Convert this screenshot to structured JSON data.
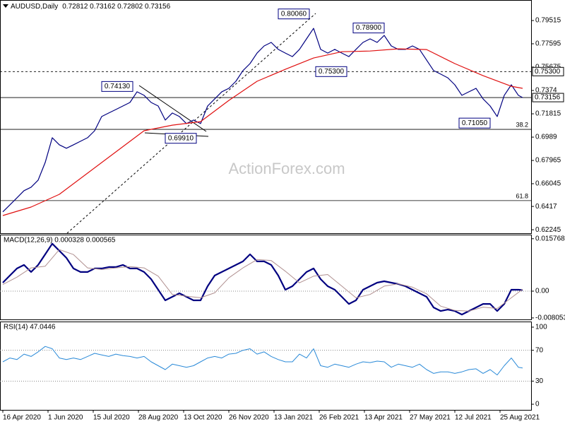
{
  "chart_data": [
    {
      "type": "line",
      "title": "AUDUSD,Daily",
      "quote": "0.72812 0.73162 0.72802 0.73156",
      "watermark": "ActionForex.com",
      "xlim": [
        -2,
        374
      ],
      "ylim": [
        0.6196,
        0.8121
      ],
      "yticks": [
        0.79515,
        0.77595,
        0.75675,
        0.7374,
        0.71815,
        0.6989,
        0.67965,
        0.66045,
        0.6417,
        0.62245
      ],
      "series": [
        {
          "color": "#000080",
          "x": [
            0,
            5,
            10,
            15,
            20,
            25,
            30,
            35,
            40,
            45,
            50,
            55,
            60,
            65,
            70,
            75,
            80,
            85,
            90,
            95,
            100,
            105,
            110,
            115,
            120,
            125,
            130,
            135,
            140,
            145,
            150,
            155,
            160,
            165,
            170,
            175,
            180,
            185,
            190,
            195,
            200,
            205,
            210,
            215,
            220,
            225,
            230,
            235,
            240,
            245,
            250,
            255,
            260,
            265,
            270,
            275,
            280,
            285,
            290,
            295,
            300,
            305,
            310,
            315,
            320,
            325,
            330,
            335,
            340,
            345,
            350,
            355,
            360,
            365,
            368
          ],
          "values": [
            0.6372,
            0.643,
            0.6488,
            0.6547,
            0.6576,
            0.6634,
            0.678,
            0.6984,
            0.6926,
            0.6897,
            0.6926,
            0.6955,
            0.6984,
            0.7042,
            0.7159,
            0.7188,
            0.7217,
            0.7246,
            0.7275,
            0.7363,
            0.7334,
            0.7275,
            0.7246,
            0.713,
            0.7188,
            0.7159,
            0.7101,
            0.713,
            0.7101,
            0.7246,
            0.7305,
            0.7363,
            0.7392,
            0.745,
            0.7538,
            0.7596,
            0.7683,
            0.7742,
            0.7771,
            0.7713,
            0.7683,
            0.7654,
            0.7713,
            0.78,
            0.7887,
            0.7713,
            0.7683,
            0.7713,
            0.7683,
            0.7654,
            0.7713,
            0.7771,
            0.78,
            0.7771,
            0.7829,
            0.7742,
            0.7713,
            0.7713,
            0.7742,
            0.7713,
            0.7626,
            0.7538,
            0.7509,
            0.7479,
            0.7421,
            0.7334,
            0.7363,
            0.7392,
            0.7305,
            0.7246,
            0.7159,
            0.7334,
            0.7421,
            0.7334,
            0.73156
          ],
          "width": 1.2
        },
        {
          "color": "#e01010",
          "x": [
            0,
            20,
            40,
            60,
            80,
            100,
            120,
            140,
            160,
            180,
            200,
            220,
            240,
            260,
            280,
            300,
            320,
            340,
            360,
            368
          ],
          "values": [
            0.6342,
            0.6412,
            0.6517,
            0.6692,
            0.6867,
            0.7042,
            0.7088,
            0.7117,
            0.7292,
            0.745,
            0.7549,
            0.7642,
            0.7694,
            0.77,
            0.7718,
            0.7712,
            0.7596,
            0.7496,
            0.7409,
            0.7392
          ],
          "width": 1.2
        }
      ],
      "levels": [
        {
          "value": 0.753,
          "label": "0.75300",
          "style": "dashed",
          "boxed": true
        },
        {
          "value": 0.73156,
          "label": "0.73156",
          "style": "solid",
          "boxed": true
        },
        {
          "value": 0.7053,
          "label": "38.2",
          "style": "solid",
          "boxed": false
        },
        {
          "value": 0.6465,
          "label": "61.8",
          "style": "solid",
          "boxed": false
        }
      ],
      "annotations": [
        {
          "label": "0.80060",
          "x": 221,
          "y": 0.8006
        },
        {
          "label": "0.78900",
          "x": 272,
          "y": 0.789
        },
        {
          "label": "0.75300",
          "x": 243,
          "y": 0.753
        },
        {
          "label": "0.74130",
          "x": 96,
          "y": 0.7413
        },
        {
          "label": "0.71050",
          "x": 348,
          "y": 0.7105
        },
        {
          "label": "0.69910",
          "x": 114,
          "y": 0.6991
        }
      ]
    },
    {
      "type": "line",
      "title": "MACD(12,26,9) 0.000328 0.000565",
      "xlim": [
        -2,
        374
      ],
      "ylim": [
        -0.0085,
        0.017
      ],
      "yticks": [
        0.015768,
        {
          "value": 0,
          "label": "0.00",
          "level": true
        },
        -0.008053
      ],
      "series": [
        {
          "color": "#000080",
          "width": 2.2,
          "x": [
            0,
            5,
            10,
            15,
            20,
            25,
            30,
            35,
            40,
            45,
            50,
            55,
            60,
            65,
            70,
            75,
            80,
            85,
            90,
            95,
            100,
            105,
            110,
            115,
            120,
            125,
            130,
            135,
            140,
            145,
            150,
            155,
            160,
            165,
            170,
            175,
            180,
            185,
            190,
            195,
            200,
            205,
            210,
            215,
            220,
            225,
            230,
            235,
            240,
            245,
            250,
            255,
            260,
            265,
            270,
            275,
            280,
            285,
            290,
            295,
            300,
            305,
            310,
            315,
            320,
            325,
            330,
            335,
            340,
            345,
            350,
            355,
            360,
            365,
            368
          ],
          "values": [
            0.00256,
            0.00469,
            0.00682,
            0.00788,
            0.00575,
            0.00788,
            0.01108,
            0.01428,
            0.01215,
            0.01001,
            0.00682,
            0.00575,
            0.00575,
            0.00682,
            0.00682,
            0.00724,
            0.00724,
            0.00788,
            0.00682,
            0.00682,
            0.00575,
            0.00362,
            0.00043,
            -0.00277,
            -0.0017,
            -0.00064,
            -0.0017,
            -0.00277,
            -0.00277,
            0.00149,
            0.00469,
            0.00575,
            0.00682,
            0.00788,
            0.00895,
            0.01108,
            0.00895,
            0.00895,
            0.00788,
            0.00469,
            0.00043,
            0.00149,
            0.00362,
            0.00575,
            0.00682,
            0.00362,
            0.00149,
            0.00043,
            -0.0017,
            -0.00384,
            -0.00277,
            0.00043,
            0.00149,
            0.00256,
            0.00298,
            0.00256,
            0.00213,
            0.00149,
            0.00043,
            -0.00064,
            -0.0017,
            -0.0049,
            -0.00597,
            -0.00554,
            -0.00597,
            -0.00703,
            -0.00597,
            -0.0049,
            -0.00384,
            -0.00384,
            -0.00597,
            -0.00384,
            0.00043,
            0.00043,
            0.000328
          ]
        },
        {
          "color": "#b09090",
          "width": 1,
          "x": [
            0,
            10,
            20,
            30,
            40,
            50,
            60,
            70,
            80,
            90,
            100,
            110,
            120,
            130,
            140,
            150,
            160,
            170,
            180,
            190,
            200,
            210,
            220,
            230,
            240,
            250,
            260,
            270,
            280,
            290,
            300,
            310,
            320,
            330,
            340,
            350,
            360,
            368
          ],
          "values": [
            0.002,
            0.0042,
            0.007,
            0.0075,
            0.0125,
            0.011,
            0.007,
            0.0065,
            0.007,
            0.0074,
            0.007,
            0.0045,
            -0.001,
            -0.0015,
            -0.002,
            -0.0005,
            0.004,
            0.007,
            0.0095,
            0.0092,
            0.006,
            0.0025,
            0.0045,
            0.005,
            0.0015,
            -0.002,
            -0.001,
            0.0015,
            0.0022,
            0.0012,
            -0.0008,
            -0.0045,
            -0.0058,
            -0.006,
            -0.0048,
            -0.0052,
            -0.002,
            0.000565
          ]
        }
      ]
    },
    {
      "type": "line",
      "title": "RSI(14) 47.0446",
      "xlim": [
        -2,
        374
      ],
      "ylim": [
        -7.3,
        107.3
      ],
      "yticks": [
        100,
        {
          "value": 70,
          "label": "70",
          "level": true
        },
        {
          "value": 30,
          "label": "30",
          "level": true
        },
        0
      ],
      "xticks": [
        {
          "value": 0,
          "label": "16 Apr 2020"
        },
        {
          "value": 32,
          "label": "1 Jun 2020"
        },
        {
          "value": 64,
          "label": "15 Jul 2020"
        },
        {
          "value": 96,
          "label": "28 Aug 2020"
        },
        {
          "value": 128,
          "label": "13 Oct 2020"
        },
        {
          "value": 160,
          "label": "26 Nov 2020"
        },
        {
          "value": 192,
          "label": "13 Jan 2021"
        },
        {
          "value": 224,
          "label": "26 Feb 2021"
        },
        {
          "value": 256,
          "label": "13 Apr 2021"
        },
        {
          "value": 288,
          "label": "27 May 2021"
        },
        {
          "value": 320,
          "label": "12 Jul 2021"
        },
        {
          "value": 352,
          "label": "25 Aug 2021"
        }
      ],
      "series": [
        {
          "color": "#2a8ad8",
          "width": 1,
          "x": [
            0,
            5,
            10,
            15,
            20,
            25,
            30,
            35,
            40,
            45,
            50,
            55,
            60,
            65,
            70,
            75,
            80,
            85,
            90,
            95,
            100,
            105,
            110,
            115,
            120,
            125,
            130,
            135,
            140,
            145,
            150,
            155,
            160,
            165,
            170,
            175,
            180,
            185,
            190,
            195,
            200,
            205,
            210,
            215,
            220,
            225,
            230,
            235,
            240,
            245,
            250,
            255,
            260,
            265,
            270,
            275,
            280,
            285,
            290,
            295,
            300,
            305,
            310,
            315,
            320,
            325,
            330,
            335,
            340,
            345,
            350,
            355,
            360,
            365,
            368
          ],
          "values": [
            55,
            60,
            58,
            65,
            62,
            68,
            75,
            72,
            60,
            58,
            60,
            58,
            62,
            66,
            64,
            62,
            65,
            63,
            62,
            60,
            62,
            55,
            50,
            45,
            52,
            50,
            48,
            50,
            55,
            60,
            62,
            60,
            65,
            66,
            70,
            72,
            65,
            68,
            62,
            58,
            55,
            55,
            65,
            60,
            72,
            50,
            48,
            52,
            50,
            48,
            52,
            55,
            54,
            56,
            55,
            48,
            52,
            50,
            48,
            52,
            45,
            40,
            42,
            42,
            40,
            42,
            45,
            46,
            40,
            45,
            38,
            50,
            60,
            48,
            47.0446
          ]
        }
      ]
    }
  ]
}
